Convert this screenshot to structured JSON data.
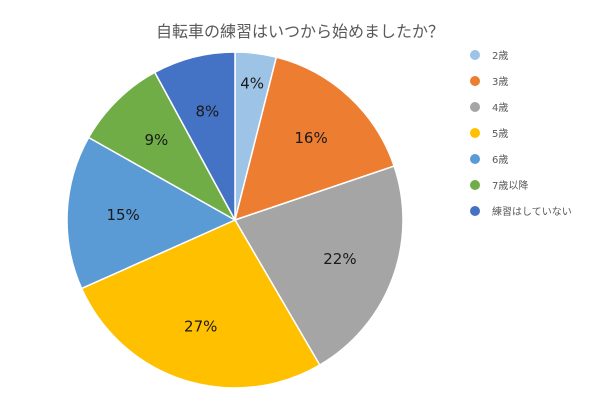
{
  "chart_data": {
    "type": "pie",
    "title": "自転車の練習はいつから始めましたか？",
    "categories": [
      "2歳",
      "3歳",
      "4歳",
      "5歳",
      "6歳",
      "7歳以降",
      "練習はしていない"
    ],
    "values": [
      4,
      16,
      22,
      27,
      15,
      9,
      8
    ],
    "value_labels": [
      "4%",
      "16%",
      "22%",
      "27%",
      "15%",
      "9%",
      "8%"
    ],
    "colors": [
      "#9DC3E6",
      "#ED7D31",
      "#A5A5A5",
      "#FFC000",
      "#5B9BD5",
      "#70AD47",
      "#4472C4"
    ],
    "legend_position": "right",
    "start_angle": "12 o'clock",
    "direction": "clockwise"
  }
}
